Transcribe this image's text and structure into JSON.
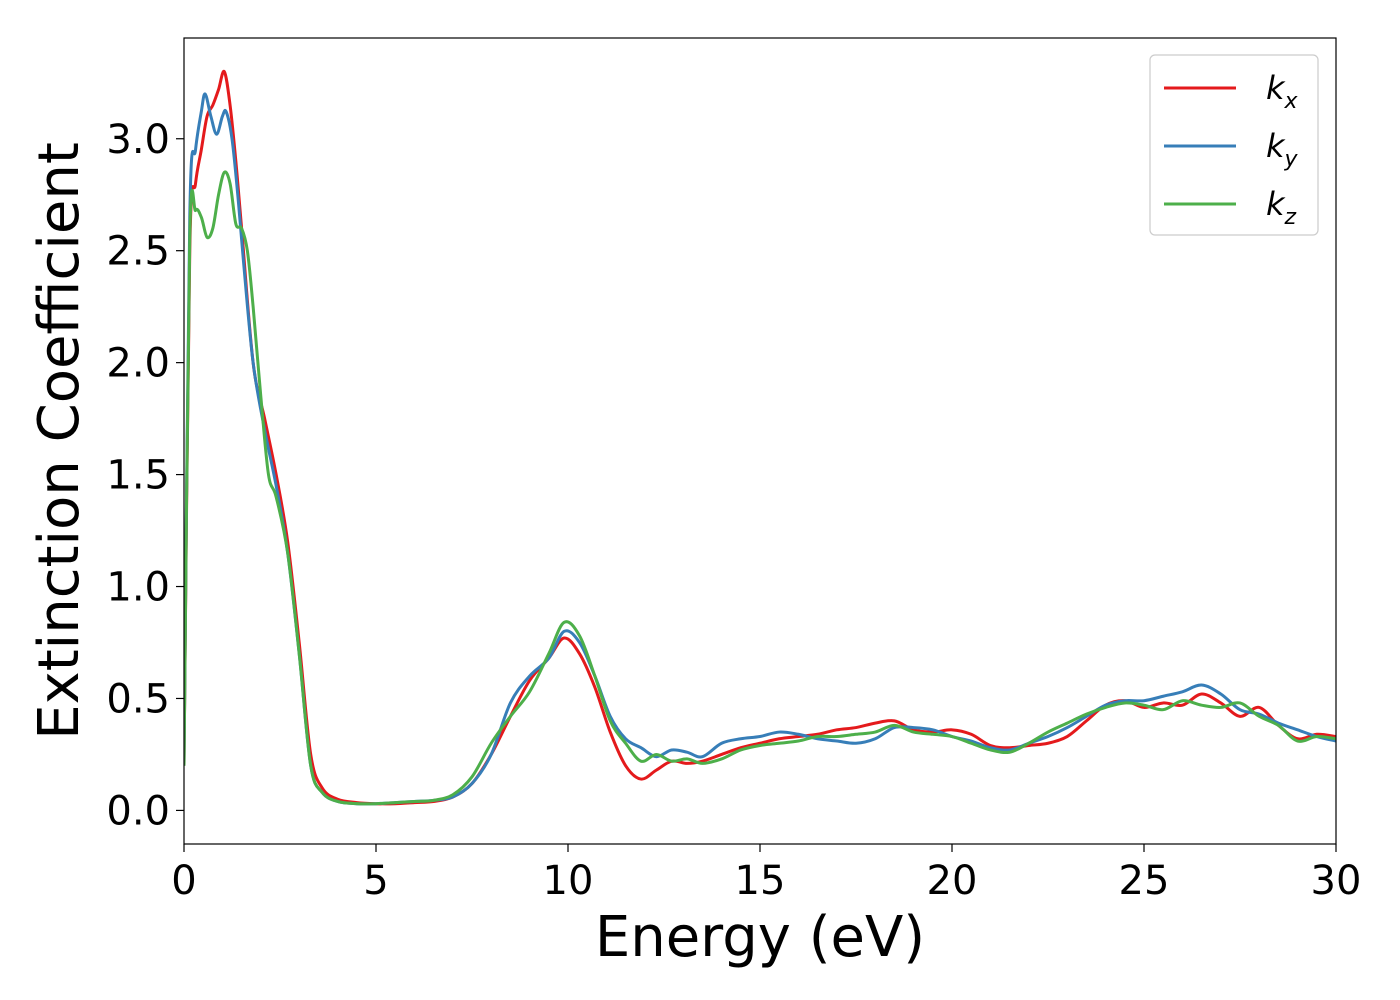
{
  "chart_data": {
    "type": "line",
    "title": "",
    "xlabel": "Energy (eV)",
    "ylabel": "Extinction Coefficient",
    "xlim": [
      0,
      30
    ],
    "ylim": [
      -0.15,
      3.45
    ],
    "xticks": [
      0,
      5,
      10,
      15,
      20,
      25,
      30
    ],
    "xtick_labels": [
      "0",
      "5",
      "10",
      "15",
      "20",
      "25",
      "30"
    ],
    "yticks": [
      0.0,
      0.5,
      1.0,
      1.5,
      2.0,
      2.5,
      3.0
    ],
    "ytick_labels": [
      "0.0",
      "0.5",
      "1.0",
      "1.5",
      "2.0",
      "2.5",
      "3.0"
    ],
    "grid": false,
    "legend_position": "top-right",
    "series": [
      {
        "name": "k",
        "subscript": "x",
        "color": "#e41a1c",
        "x": [
          0,
          0.15,
          0.3,
          0.45,
          0.6,
          0.75,
          0.9,
          1.05,
          1.2,
          1.35,
          1.5,
          1.8,
          2.1,
          2.4,
          2.7,
          3.0,
          3.3,
          3.6,
          4.0,
          4.5,
          5.0,
          5.5,
          6.0,
          6.5,
          7.0,
          7.5,
          8.0,
          8.5,
          9.0,
          9.5,
          9.9,
          10.3,
          10.7,
          11.1,
          11.5,
          11.9,
          12.3,
          12.7,
          13.1,
          13.5,
          14.0,
          14.5,
          15.0,
          15.5,
          16.0,
          16.5,
          17.0,
          17.5,
          18.0,
          18.5,
          19.0,
          19.5,
          20.0,
          20.5,
          21.0,
          21.5,
          22.0,
          22.5,
          23.0,
          23.5,
          24.0,
          24.5,
          25.0,
          25.5,
          26.0,
          26.5,
          27.0,
          27.5,
          28.0,
          28.5,
          29.0,
          29.5,
          30.0
        ],
        "y": [
          0.2,
          2.5,
          2.8,
          2.95,
          3.1,
          3.15,
          3.22,
          3.3,
          3.15,
          2.9,
          2.6,
          2.0,
          1.75,
          1.5,
          1.2,
          0.75,
          0.25,
          0.1,
          0.05,
          0.035,
          0.03,
          0.03,
          0.035,
          0.04,
          0.06,
          0.12,
          0.25,
          0.42,
          0.58,
          0.68,
          0.77,
          0.7,
          0.55,
          0.35,
          0.2,
          0.14,
          0.18,
          0.22,
          0.21,
          0.22,
          0.25,
          0.28,
          0.3,
          0.32,
          0.33,
          0.34,
          0.36,
          0.37,
          0.39,
          0.4,
          0.36,
          0.35,
          0.36,
          0.34,
          0.29,
          0.28,
          0.29,
          0.3,
          0.33,
          0.4,
          0.47,
          0.49,
          0.46,
          0.48,
          0.47,
          0.52,
          0.48,
          0.42,
          0.46,
          0.38,
          0.32,
          0.34,
          0.33
        ]
      },
      {
        "name": "k",
        "subscript": "y",
        "color": "#377eb8",
        "x": [
          0,
          0.15,
          0.3,
          0.45,
          0.55,
          0.7,
          0.85,
          1.0,
          1.1,
          1.25,
          1.4,
          1.55,
          1.8,
          2.1,
          2.4,
          2.7,
          3.0,
          3.3,
          3.6,
          4.0,
          4.5,
          5.0,
          5.5,
          6.0,
          6.5,
          7.0,
          7.5,
          8.0,
          8.5,
          9.0,
          9.5,
          9.9,
          10.3,
          10.7,
          11.1,
          11.5,
          11.9,
          12.3,
          12.7,
          13.1,
          13.5,
          14.0,
          14.5,
          15.0,
          15.5,
          16.0,
          16.5,
          17.0,
          17.5,
          18.0,
          18.5,
          19.0,
          19.5,
          20.0,
          20.5,
          21.0,
          21.5,
          22.0,
          22.5,
          23.0,
          23.5,
          24.0,
          24.5,
          25.0,
          25.5,
          26.0,
          26.5,
          27.0,
          27.5,
          28.0,
          28.5,
          29.0,
          29.5,
          30.0
        ],
        "y": [
          0.2,
          2.65,
          2.95,
          3.12,
          3.2,
          3.1,
          3.02,
          3.1,
          3.12,
          3.0,
          2.75,
          2.45,
          2.0,
          1.7,
          1.45,
          1.15,
          0.7,
          0.2,
          0.08,
          0.04,
          0.03,
          0.03,
          0.035,
          0.04,
          0.045,
          0.06,
          0.12,
          0.25,
          0.48,
          0.6,
          0.68,
          0.8,
          0.75,
          0.6,
          0.42,
          0.32,
          0.28,
          0.24,
          0.27,
          0.26,
          0.24,
          0.3,
          0.32,
          0.33,
          0.35,
          0.34,
          0.32,
          0.31,
          0.3,
          0.32,
          0.37,
          0.37,
          0.36,
          0.33,
          0.31,
          0.28,
          0.27,
          0.3,
          0.33,
          0.37,
          0.42,
          0.47,
          0.49,
          0.49,
          0.51,
          0.53,
          0.56,
          0.52,
          0.45,
          0.43,
          0.39,
          0.36,
          0.33,
          0.31
        ]
      },
      {
        "name": "k",
        "subscript": "z",
        "color": "#4daf4a",
        "x": [
          0,
          0.15,
          0.3,
          0.45,
          0.6,
          0.75,
          0.9,
          1.05,
          1.2,
          1.35,
          1.5,
          1.65,
          1.8,
          2.0,
          2.2,
          2.4,
          2.7,
          3.0,
          3.3,
          3.6,
          4.0,
          4.5,
          5.0,
          5.5,
          6.0,
          6.5,
          7.0,
          7.5,
          8.0,
          8.5,
          9.0,
          9.5,
          9.9,
          10.3,
          10.7,
          11.1,
          11.5,
          11.9,
          12.3,
          12.7,
          13.1,
          13.5,
          14.0,
          14.5,
          15.0,
          15.5,
          16.0,
          16.5,
          17.0,
          17.5,
          18.0,
          18.5,
          19.0,
          19.5,
          20.0,
          20.5,
          21.0,
          21.5,
          22.0,
          22.5,
          23.0,
          23.5,
          24.0,
          24.5,
          25.0,
          25.5,
          26.0,
          26.5,
          27.0,
          27.5,
          28.0,
          28.5,
          29.0,
          29.5,
          30.0
        ],
        "y": [
          0.2,
          2.55,
          2.68,
          2.65,
          2.56,
          2.6,
          2.75,
          2.85,
          2.8,
          2.62,
          2.6,
          2.5,
          2.25,
          1.85,
          1.5,
          1.4,
          1.15,
          0.7,
          0.2,
          0.08,
          0.04,
          0.03,
          0.03,
          0.035,
          0.04,
          0.045,
          0.07,
          0.15,
          0.3,
          0.42,
          0.53,
          0.7,
          0.84,
          0.78,
          0.6,
          0.4,
          0.3,
          0.22,
          0.25,
          0.22,
          0.23,
          0.21,
          0.23,
          0.27,
          0.29,
          0.3,
          0.31,
          0.33,
          0.33,
          0.34,
          0.35,
          0.38,
          0.35,
          0.34,
          0.33,
          0.3,
          0.27,
          0.26,
          0.3,
          0.35,
          0.39,
          0.43,
          0.46,
          0.48,
          0.47,
          0.45,
          0.49,
          0.47,
          0.46,
          0.48,
          0.42,
          0.38,
          0.31,
          0.33,
          0.32
        ]
      }
    ]
  }
}
